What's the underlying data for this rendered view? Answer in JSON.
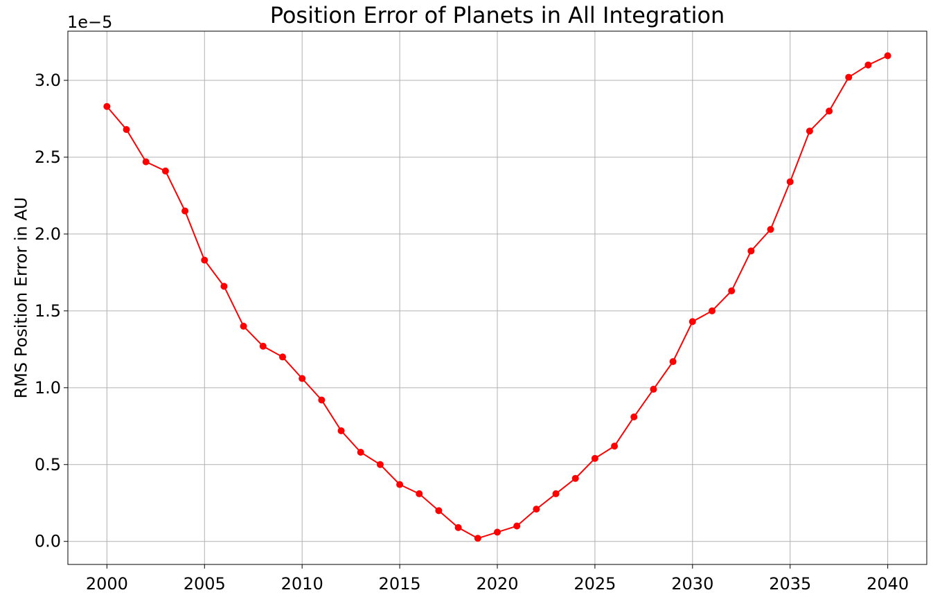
{
  "chart_data": {
    "type": "line",
    "title": "Position Error of Planets in All Integration",
    "xlabel": "",
    "ylabel": "RMS Position Error in AU",
    "y_offset_label": "1e−5",
    "xlim": [
      1998,
      2042
    ],
    "ylim": [
      -0.15,
      3.32
    ],
    "y_scale_factor": 1e-05,
    "grid": true,
    "xticks": [
      2000,
      2005,
      2010,
      2015,
      2020,
      2025,
      2030,
      2035,
      2040
    ],
    "xtick_labels": [
      "2000",
      "2005",
      "2010",
      "2015",
      "2020",
      "2025",
      "2030",
      "2035",
      "2040"
    ],
    "yticks": [
      0.0,
      0.5,
      1.0,
      1.5,
      2.0,
      2.5,
      3.0
    ],
    "ytick_labels": [
      "0.0",
      "0.5",
      "1.0",
      "1.5",
      "2.0",
      "2.5",
      "3.0"
    ],
    "series": [
      {
        "color": "#ff0000",
        "marker": "circle",
        "x": [
          2000,
          2001,
          2002,
          2003,
          2004,
          2005,
          2006,
          2007,
          2008,
          2009,
          2010,
          2011,
          2012,
          2013,
          2014,
          2015,
          2016,
          2017,
          2018,
          2019,
          2020,
          2021,
          2022,
          2023,
          2024,
          2025,
          2026,
          2027,
          2028,
          2029,
          2030,
          2031,
          2032,
          2033,
          2034,
          2035,
          2036,
          2037,
          2038,
          2039,
          2040
        ],
        "y": [
          2.83,
          2.68,
          2.47,
          2.41,
          2.15,
          1.83,
          1.66,
          1.4,
          1.27,
          1.2,
          1.06,
          0.92,
          0.72,
          0.58,
          0.5,
          0.37,
          0.31,
          0.2,
          0.09,
          0.02,
          0.06,
          0.1,
          0.21,
          0.31,
          0.41,
          0.54,
          0.62,
          0.81,
          0.99,
          1.17,
          1.43,
          1.5,
          1.63,
          1.89,
          2.03,
          2.34,
          2.67,
          2.8,
          3.02,
          3.1,
          3.16
        ]
      }
    ]
  }
}
